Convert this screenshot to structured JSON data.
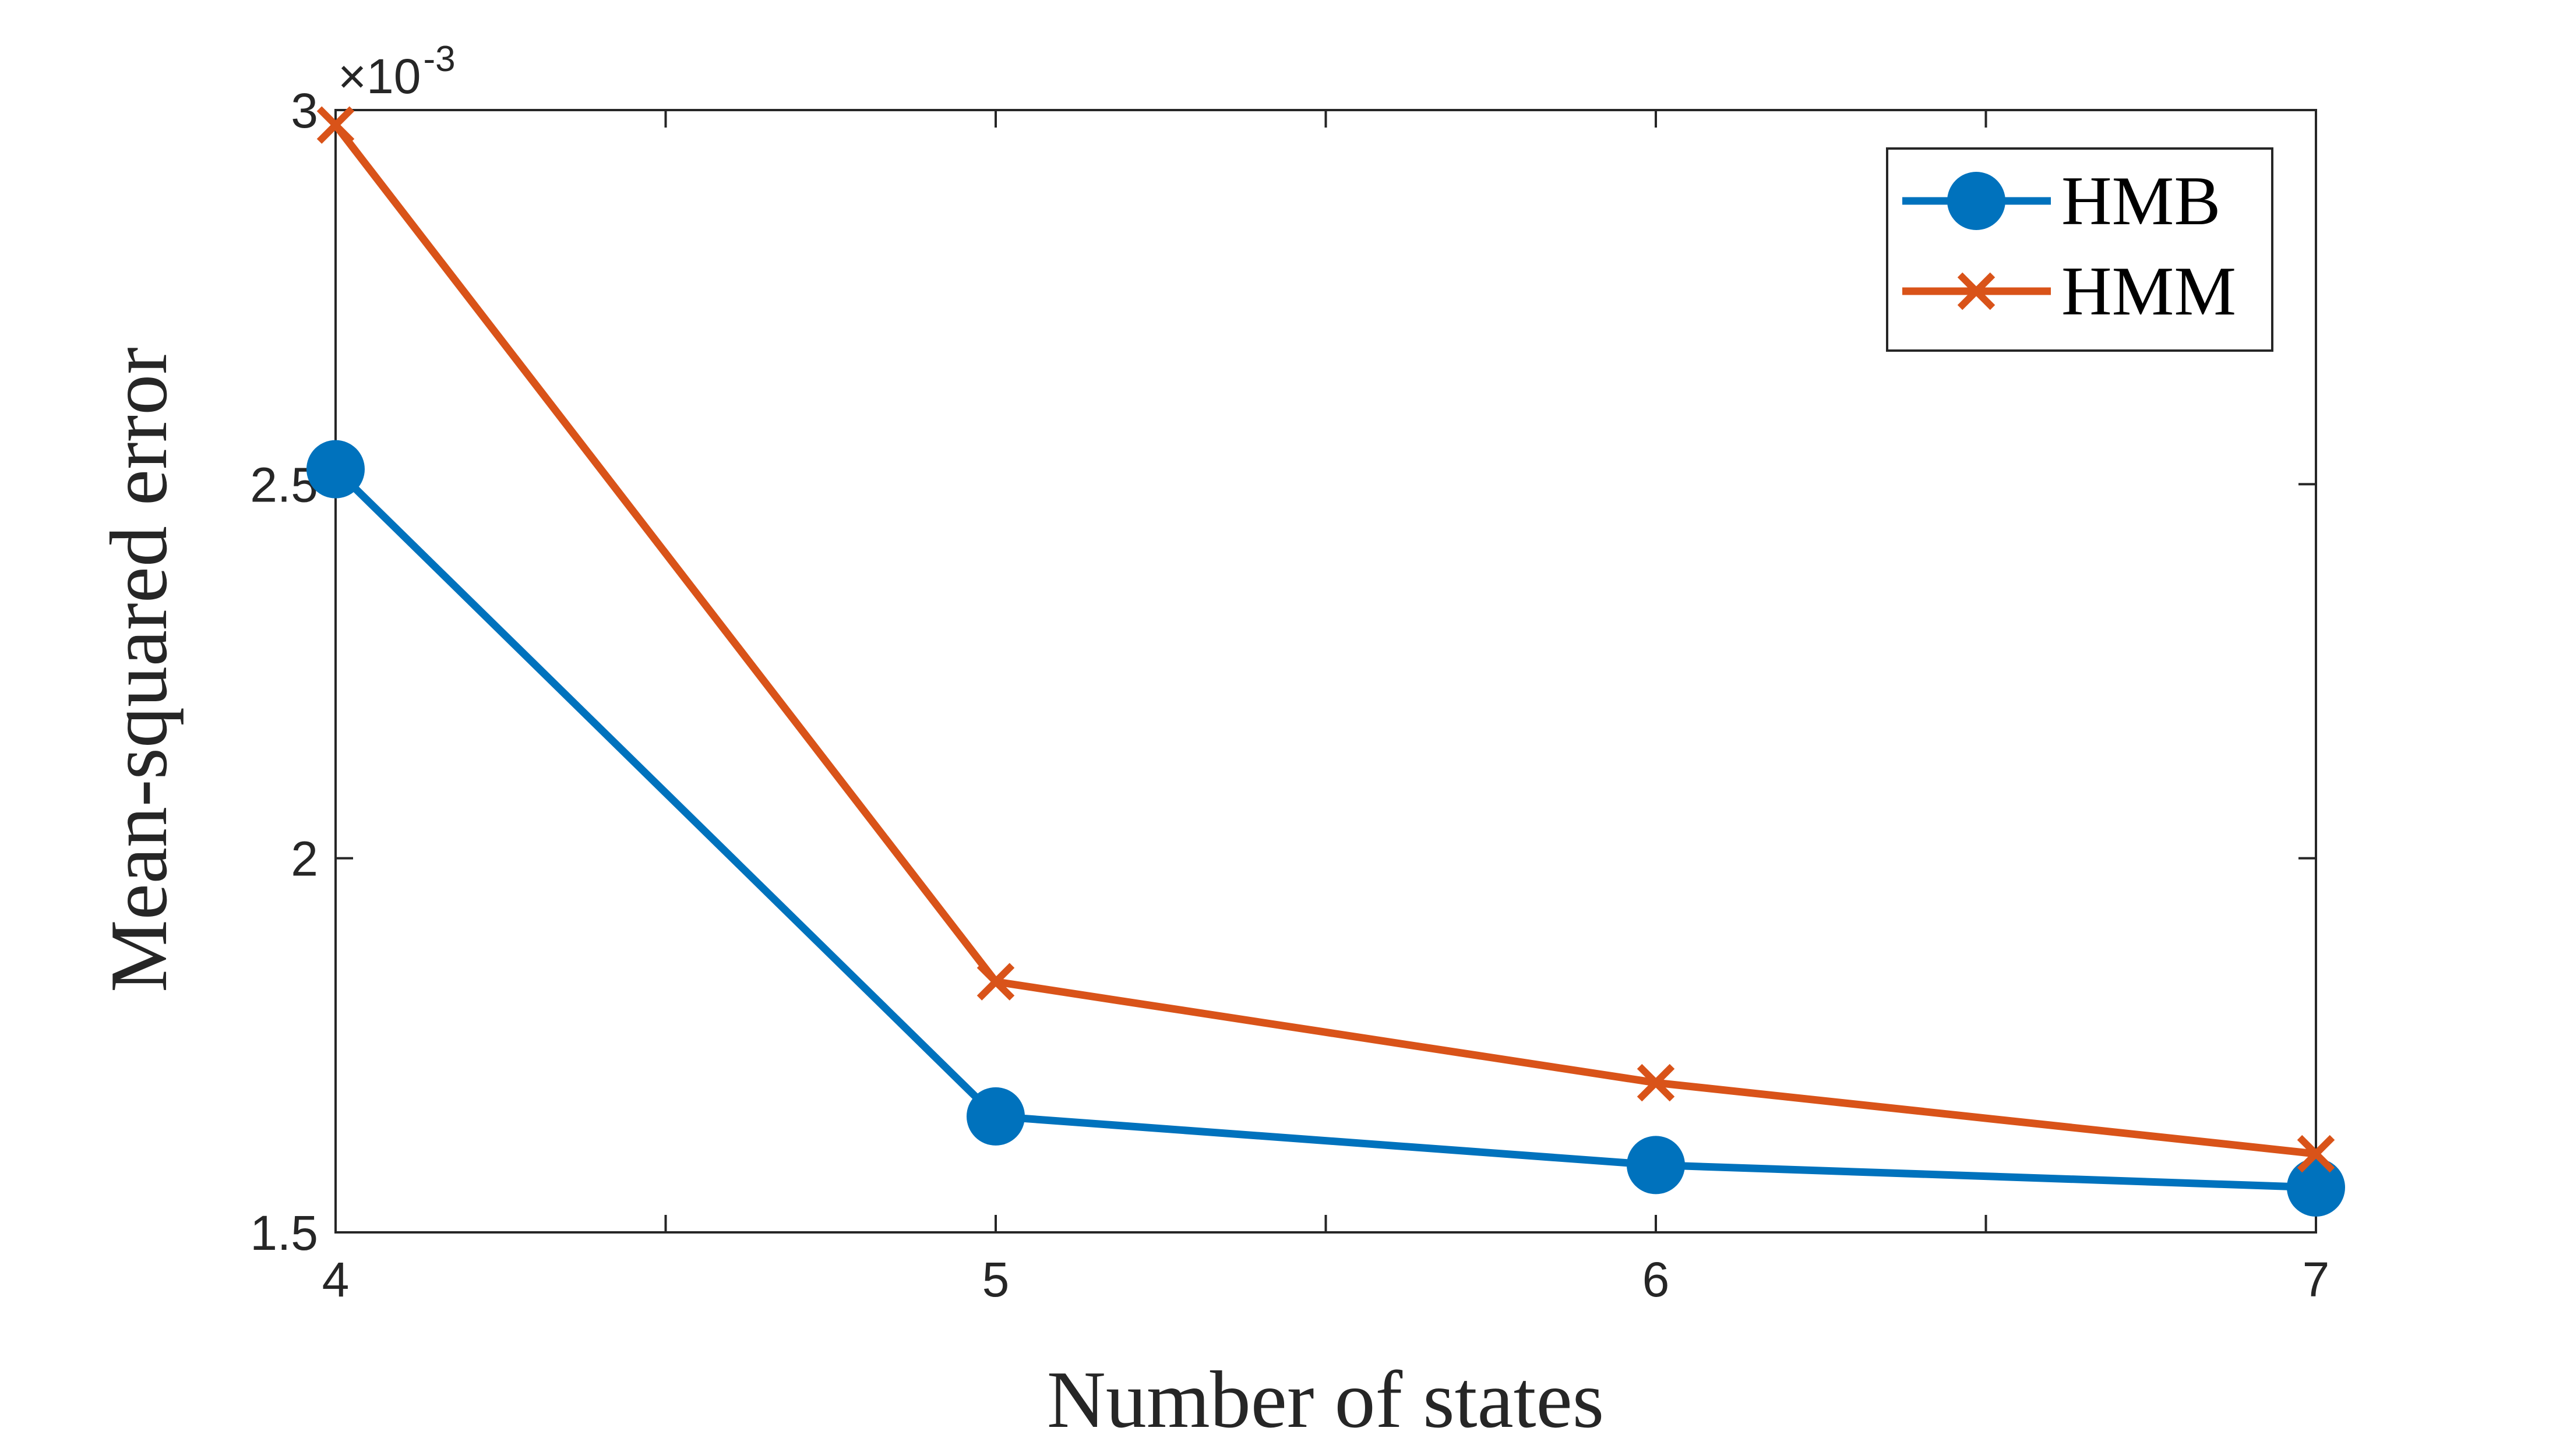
{
  "chart_data": {
    "type": "line",
    "xlabel": "Number of states",
    "ylabel": "Mean-squared error",
    "x": [
      4,
      5,
      6,
      7
    ],
    "xlim": [
      4,
      7
    ],
    "ylim": [
      0.0015,
      0.003
    ],
    "x_ticks": [
      "4",
      "5",
      "6",
      "7"
    ],
    "y_ticks": [
      "1.5",
      "2",
      "2.5",
      "3"
    ],
    "y_multiplier": {
      "base": "×10",
      "exponent": "-3"
    },
    "grid": false,
    "legend_position": "top-right",
    "series": [
      {
        "name": "HMB",
        "marker": "circle",
        "color": "#0072BD",
        "values": [
          0.00252,
          0.001655,
          0.00159,
          0.00156
        ]
      },
      {
        "name": "HMM",
        "marker": "x",
        "color": "#D95319",
        "values": [
          0.00298,
          0.001835,
          0.0017,
          0.001605
        ]
      }
    ]
  }
}
